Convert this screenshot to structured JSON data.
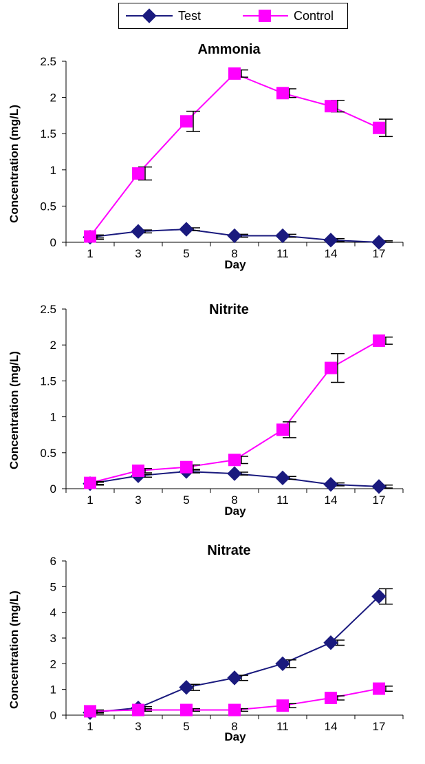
{
  "legend": [
    {
      "name": "Test",
      "color": "#1a1a7e",
      "marker": "diamond"
    },
    {
      "name": "Control",
      "color": "#ff00ff",
      "marker": "square"
    }
  ],
  "chart_data": [
    {
      "type": "line",
      "title": "Ammonia",
      "xlabel": "Day",
      "ylabel": "Concentration (mg/L)",
      "categories": [
        "1",
        "3",
        "5",
        "8",
        "11",
        "14",
        "17"
      ],
      "ylim": [
        0,
        2.5
      ],
      "yticks": [
        "0",
        "0.5",
        "1",
        "1.5",
        "2",
        "2.5"
      ],
      "series": [
        {
          "name": "Test",
          "values": [
            0.07,
            0.15,
            0.18,
            0.09,
            0.09,
            0.03,
            0.0
          ],
          "errors": [
            0.03,
            0.02,
            0.02,
            0.02,
            0.02,
            0.02,
            0.02
          ]
        },
        {
          "name": "Control",
          "values": [
            0.08,
            0.95,
            1.67,
            2.33,
            2.06,
            1.88,
            1.58
          ],
          "errors": [
            0.02,
            0.09,
            0.14,
            0.05,
            0.06,
            0.08,
            0.12
          ]
        }
      ]
    },
    {
      "type": "line",
      "title": "Nitrite",
      "xlabel": "Day",
      "ylabel": "Concentration (mg/L)",
      "categories": [
        "1",
        "3",
        "5",
        "8",
        "11",
        "14",
        "17"
      ],
      "ylim": [
        0,
        2.5
      ],
      "yticks": [
        "0",
        "0.5",
        "1",
        "1.5",
        "2",
        "2.5"
      ],
      "series": [
        {
          "name": "Test",
          "values": [
            0.07,
            0.18,
            0.24,
            0.21,
            0.15,
            0.06,
            0.03
          ],
          "errors": [
            0.02,
            0.02,
            0.02,
            0.02,
            0.02,
            0.02,
            0.02
          ]
        },
        {
          "name": "Control",
          "values": [
            0.08,
            0.25,
            0.3,
            0.4,
            0.82,
            1.68,
            2.06
          ],
          "errors": [
            0.02,
            0.03,
            0.03,
            0.05,
            0.11,
            0.2,
            0.05
          ]
        }
      ]
    },
    {
      "type": "line",
      "title": "Nitrate",
      "xlabel": "Day",
      "ylabel": "Concentration (mg/L)",
      "categories": [
        "1",
        "3",
        "5",
        "8",
        "11",
        "14",
        "17"
      ],
      "ylim": [
        0,
        6
      ],
      "yticks": [
        "0",
        "1",
        "2",
        "3",
        "4",
        "5",
        "6"
      ],
      "series": [
        {
          "name": "Test",
          "values": [
            0.1,
            0.28,
            1.08,
            1.45,
            2.0,
            2.82,
            4.62
          ],
          "errors": [
            0.05,
            0.05,
            0.12,
            0.1,
            0.15,
            0.1,
            0.3
          ]
        },
        {
          "name": "Control",
          "values": [
            0.15,
            0.2,
            0.2,
            0.2,
            0.37,
            0.67,
            1.03
          ],
          "errors": [
            0.05,
            0.05,
            0.05,
            0.05,
            0.08,
            0.08,
            0.1
          ]
        }
      ]
    }
  ]
}
